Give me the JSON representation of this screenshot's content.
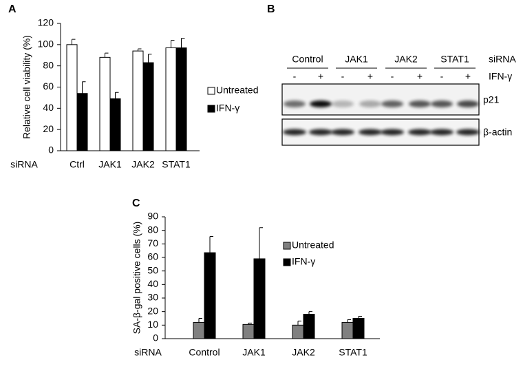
{
  "chart_data": [
    {
      "type": "bar",
      "panel_label": "A",
      "ylabel": "Relative cell viability (%)",
      "xlabel": "siRNA",
      "categories": [
        "Ctrl",
        "JAK1",
        "JAK2",
        "STAT1"
      ],
      "series": [
        {
          "name": "Untreated",
          "color": "#ffffff",
          "values": [
            100,
            88,
            94,
            97
          ],
          "errors": [
            5,
            4,
            2,
            7
          ]
        },
        {
          "name": "IFN-γ",
          "color": "#000000",
          "values": [
            54,
            49,
            83,
            97
          ],
          "errors": [
            11,
            6,
            8,
            9
          ]
        }
      ],
      "ylim": [
        0,
        120
      ],
      "yticks": [
        0,
        20,
        40,
        60,
        80,
        100,
        120
      ]
    },
    {
      "type": "bar",
      "panel_label": "C",
      "ylabel": "SA-β-gal positive cells  (%)",
      "xlabel": "siRNA",
      "categories": [
        "Control",
        "JAK1",
        "JAK2",
        "STAT1"
      ],
      "series": [
        {
          "name": "Untreated",
          "color": "#808080",
          "values": [
            12,
            10.5,
            10,
            12
          ],
          "errors": [
            3,
            1,
            3,
            2
          ]
        },
        {
          "name": "IFN-γ",
          "color": "#000000",
          "values": [
            63.5,
            59,
            18,
            15
          ],
          "errors": [
            12,
            23,
            2,
            1.5
          ]
        }
      ],
      "ylim": [
        0,
        90
      ],
      "yticks": [
        0,
        10,
        20,
        30,
        40,
        50,
        60,
        70,
        80,
        90
      ]
    }
  ],
  "blot": {
    "panel_label": "B",
    "groups": [
      "Control",
      "JAK1",
      "JAK2",
      "STAT1"
    ],
    "group_row_label": "siRNA",
    "treatment_label": "IFN-γ",
    "treatments": [
      "-",
      "+",
      "-",
      "+",
      "-",
      "+",
      "-",
      "+"
    ],
    "bands": [
      "p21",
      "β-actin"
    ]
  }
}
